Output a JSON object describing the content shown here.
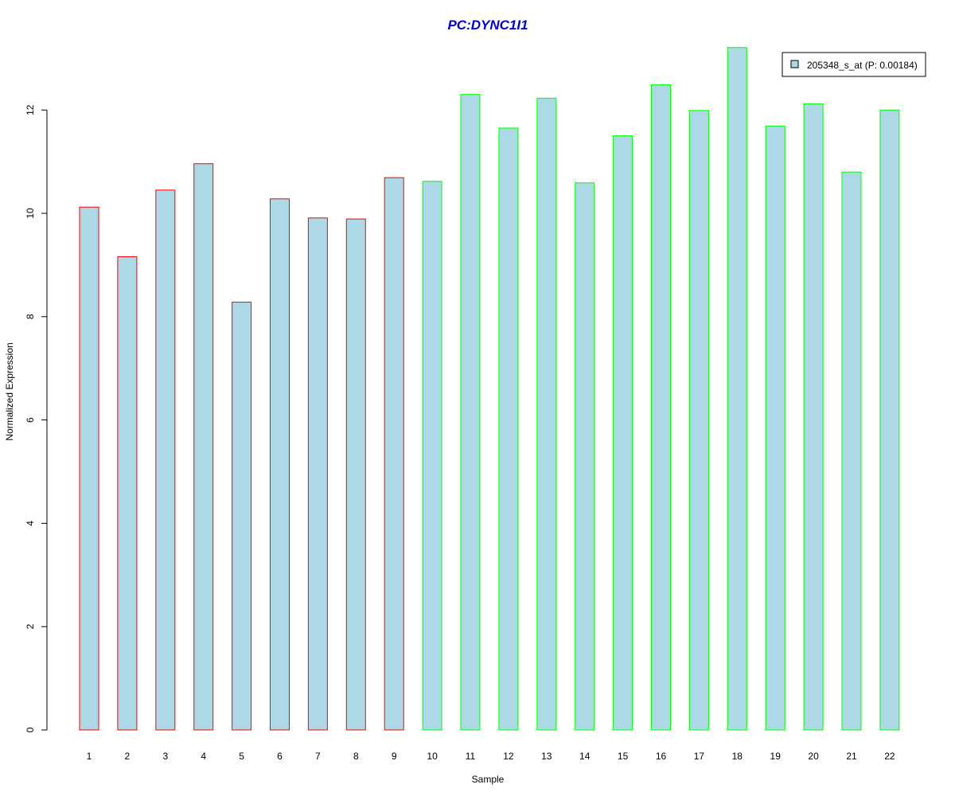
{
  "chart_data": {
    "type": "bar",
    "title": "PC:DYNC1I1",
    "xlabel": "Sample",
    "ylabel": "Normalized Expression",
    "categories": [
      "1",
      "2",
      "3",
      "4",
      "5",
      "6",
      "7",
      "8",
      "9",
      "10",
      "11",
      "12",
      "13",
      "14",
      "15",
      "16",
      "17",
      "18",
      "19",
      "20",
      "21",
      "22"
    ],
    "series": [
      {
        "name": "205348_s_at (P: 0.00184)",
        "values": [
          10.12,
          9.16,
          10.45,
          10.96,
          8.28,
          10.28,
          9.91,
          9.89,
          10.69,
          10.62,
          12.3,
          11.65,
          12.23,
          10.59,
          11.5,
          12.49,
          11.99,
          13.21,
          11.69,
          12.12,
          10.8,
          12.0
        ]
      }
    ],
    "ylim": [
      0,
      13.21
    ],
    "yticks": [
      "0",
      "2",
      "4",
      "6",
      "8",
      "10",
      "12"
    ],
    "grid": false,
    "legend_position": "top-right",
    "bar_fill": "#add8e6",
    "group_border_colors": {
      "samples_1_to_9": "#ff0000",
      "samples_10_to_22": "#00ff00"
    },
    "group_split_after": 9,
    "title_color": "#0000cc"
  }
}
